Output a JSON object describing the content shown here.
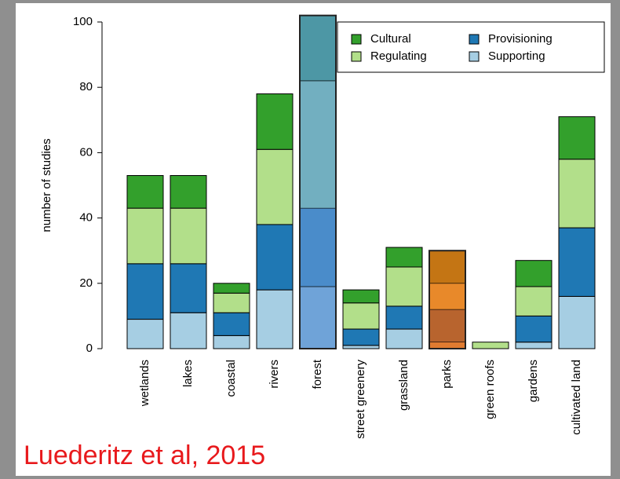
{
  "chart_data": {
    "type": "stacked_bar",
    "y_label": "number of studies",
    "annotation": "Luederitz et al, 2015",
    "categories": [
      "wetlands",
      "lakes",
      "coastal",
      "rivers",
      "forest",
      "street greenery",
      "grassland",
      "parks",
      "green roofs",
      "gardens",
      "cultivated land"
    ],
    "series": [
      {
        "name": "Supporting",
        "color": "#a6cee3",
        "values": [
          9,
          11,
          4,
          18,
          19,
          1,
          6,
          2,
          0,
          2,
          16
        ]
      },
      {
        "name": "Provisioning",
        "color": "#1f78b4",
        "values": [
          17,
          15,
          7,
          20,
          24,
          5,
          7,
          10,
          0,
          8,
          21
        ]
      },
      {
        "name": "Regulating",
        "color": "#b2df8a",
        "values": [
          17,
          17,
          6,
          23,
          39,
          8,
          12,
          8,
          2,
          9,
          21
        ]
      },
      {
        "name": "Cultural",
        "color": "#33a02c",
        "values": [
          10,
          10,
          3,
          17,
          20,
          4,
          6,
          10,
          0,
          8,
          13
        ]
      }
    ],
    "highlights": [
      {
        "category": "forest",
        "colors": [
          "#6fa3d8",
          "#4a8cca",
          "#72afc0",
          "#4d97a5"
        ]
      },
      {
        "category": "parks",
        "colors": [
          "#e07b30",
          "#b8642e",
          "#e8892a",
          "#c47514"
        ]
      }
    ],
    "legend_order": [
      "Cultural",
      "Regulating",
      "Provisioning",
      "Supporting"
    ],
    "legend_position": "top-right",
    "ylim": [
      0,
      100
    ],
    "yticks": [
      0,
      20,
      40,
      60,
      80,
      100
    ]
  }
}
